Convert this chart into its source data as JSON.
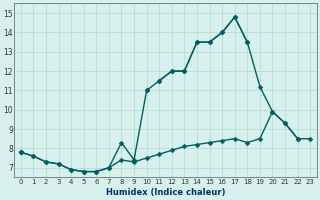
{
  "xlabel": "Humidex (Indice chaleur)",
  "x": [
    0,
    1,
    2,
    3,
    4,
    5,
    6,
    7,
    8,
    9,
    10,
    11,
    12,
    13,
    14,
    15,
    16,
    17,
    18,
    19,
    20,
    21,
    22,
    23
  ],
  "line_top": [
    7.8,
    null,
    null,
    null,
    null,
    null,
    null,
    null,
    null,
    null,
    null,
    11.5,
    12.0,
    12.0,
    13.5,
    13.5,
    14.0,
    14.8,
    null,
    null,
    null,
    null,
    null,
    null
  ],
  "line_mid_upper": [
    7.8,
    null,
    null,
    null,
    null,
    null,
    null,
    null,
    null,
    null,
    11.0,
    11.5,
    12.0,
    12.0,
    13.5,
    13.5,
    14.0,
    14.8,
    13.5,
    null,
    null,
    null,
    null,
    null
  ],
  "line_mid": [
    7.8,
    7.6,
    7.3,
    7.2,
    6.9,
    6.8,
    6.8,
    7.0,
    8.3,
    7.4,
    11.0,
    11.5,
    12.0,
    12.0,
    13.5,
    13.5,
    14.0,
    14.8,
    13.5,
    11.2,
    9.9,
    9.3,
    8.5,
    null
  ],
  "line_bot": [
    7.8,
    7.6,
    7.3,
    7.2,
    6.9,
    6.8,
    6.8,
    7.0,
    7.4,
    7.3,
    7.5,
    7.7,
    7.9,
    8.1,
    8.2,
    8.3,
    8.4,
    8.5,
    8.3,
    8.5,
    9.9,
    9.3,
    8.5,
    8.5
  ],
  "color": "#006060",
  "bg_color": "#d8f0ec",
  "grid_color": "#b0d8d4",
  "ylim": [
    6.5,
    15.5
  ],
  "xlim": [
    -0.5,
    23.5
  ],
  "yticks": [
    7,
    8,
    9,
    10,
    11,
    12,
    13,
    14,
    15
  ],
  "xticks": [
    0,
    1,
    2,
    3,
    4,
    5,
    6,
    7,
    8,
    9,
    10,
    11,
    12,
    13,
    14,
    15,
    16,
    17,
    18,
    19,
    20,
    21,
    22,
    23
  ],
  "markersize": 2.5,
  "linewidth": 1.0
}
